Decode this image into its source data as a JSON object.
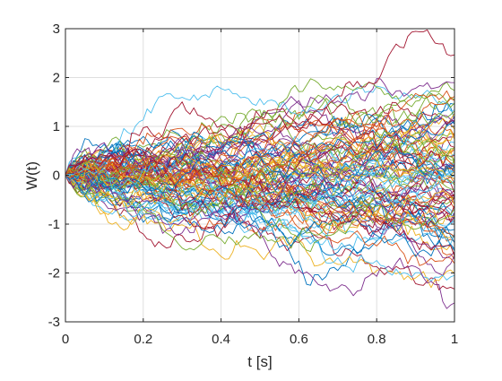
{
  "chart_data": {
    "type": "line",
    "title": "",
    "xlabel": "t [s]",
    "ylabel": "W(t)",
    "xlim": [
      0,
      1
    ],
    "ylim": [
      -3,
      3
    ],
    "xticks": [
      0,
      0.2,
      0.4,
      0.6,
      0.8,
      1
    ],
    "xtick_labels": [
      "0",
      "0.2",
      "0.4",
      "0.6",
      "0.8",
      "1"
    ],
    "yticks": [
      -3,
      -2,
      -1,
      0,
      1,
      2,
      3
    ],
    "ytick_labels": [
      "-3",
      "-2",
      "-1",
      "0",
      "1",
      "2",
      "3"
    ],
    "grid": true,
    "legend": "none",
    "description_of_series": "100 simulated standard Wiener process (Brownian motion) sample paths on t in [0,1] with 100 steps each; every path starts at W(0)=0; spread grows with sqrt(t); extremes near +2.5 and -2.3 at t≈0.8–1.",
    "series_count": 100,
    "steps": 100,
    "seed": 7,
    "colors": [
      "#0072BD",
      "#D95319",
      "#EDB120",
      "#7E2F8E",
      "#77AC30",
      "#4DBEEE",
      "#A2142F"
    ]
  }
}
